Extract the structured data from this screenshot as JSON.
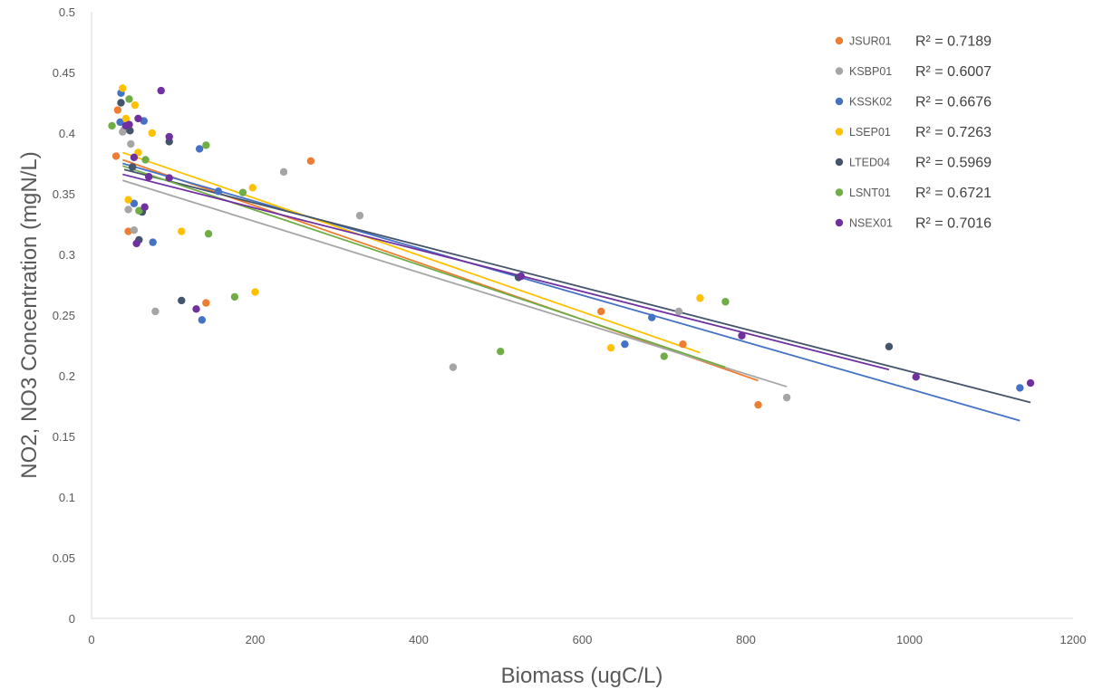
{
  "chart_data": {
    "type": "scatter",
    "xlabel": "Biomass (ugC/L)",
    "ylabel": "NO2, NO3 Concentration (mgN/L)",
    "xlim": [
      0,
      1200
    ],
    "ylim": [
      0,
      0.5
    ],
    "xticks": [
      "0",
      "200",
      "400",
      "600",
      "800",
      "1000",
      "1200"
    ],
    "yticks": [
      "0",
      "0.05",
      "0.1",
      "0.15",
      "0.2",
      "0.25",
      "0.3",
      "0.35",
      "0.4",
      "0.45",
      "0.5"
    ],
    "grid": false,
    "legend_position": "top-right",
    "series": [
      {
        "name": "JSUR01",
        "r2_label": "R² = 0.7189",
        "color": "#ED7D31",
        "points": [
          [
            30,
            0.381
          ],
          [
            32,
            0.419
          ],
          [
            45,
            0.319
          ],
          [
            140,
            0.26
          ],
          [
            268,
            0.377
          ],
          [
            623,
            0.253
          ],
          [
            723,
            0.226
          ],
          [
            815,
            0.176
          ]
        ],
        "trendline": [
          [
            38,
            0.378
          ],
          [
            815,
            0.196
          ]
        ]
      },
      {
        "name": "KSBP01",
        "r2_label": "R² = 0.6007",
        "color": "#A5A5A5",
        "points": [
          [
            38,
            0.401
          ],
          [
            40,
            0.403
          ],
          [
            45,
            0.337
          ],
          [
            48,
            0.391
          ],
          [
            52,
            0.32
          ],
          [
            78,
            0.253
          ],
          [
            235,
            0.368
          ],
          [
            328,
            0.332
          ],
          [
            442,
            0.207
          ],
          [
            718,
            0.253
          ],
          [
            850,
            0.182
          ]
        ],
        "trendline": [
          [
            38,
            0.361
          ],
          [
            850,
            0.191
          ]
        ]
      },
      {
        "name": "KSSK02",
        "r2_label": "R² = 0.6676",
        "color": "#4472C4",
        "points": [
          [
            35,
            0.409
          ],
          [
            36,
            0.433
          ],
          [
            52,
            0.342
          ],
          [
            64,
            0.41
          ],
          [
            75,
            0.31
          ],
          [
            132,
            0.387
          ],
          [
            135,
            0.246
          ],
          [
            155,
            0.352
          ],
          [
            652,
            0.226
          ],
          [
            685,
            0.248
          ],
          [
            1135,
            0.19
          ]
        ],
        "trendline": [
          [
            38,
            0.375
          ],
          [
            1135,
            0.163
          ]
        ]
      },
      {
        "name": "LSEP01",
        "r2_label": "R² = 0.7263",
        "color": "#FFC000",
        "points": [
          [
            38,
            0.437
          ],
          [
            42,
            0.412
          ],
          [
            45,
            0.345
          ],
          [
            53,
            0.423
          ],
          [
            57,
            0.384
          ],
          [
            74,
            0.4
          ],
          [
            110,
            0.319
          ],
          [
            197,
            0.355
          ],
          [
            200,
            0.269
          ],
          [
            635,
            0.223
          ],
          [
            744,
            0.264
          ]
        ],
        "trendline": [
          [
            38,
            0.384
          ],
          [
            744,
            0.219
          ]
        ]
      },
      {
        "name": "LTED04",
        "r2_label": "R² = 0.5969",
        "color": "#44546A",
        "points": [
          [
            36,
            0.425
          ],
          [
            47,
            0.402
          ],
          [
            50,
            0.372
          ],
          [
            58,
            0.312
          ],
          [
            62,
            0.335
          ],
          [
            95,
            0.393
          ],
          [
            110,
            0.262
          ],
          [
            522,
            0.281
          ],
          [
            975,
            0.224
          ]
        ],
        "trendline": [
          [
            40,
            0.37
          ],
          [
            1148,
            0.178
          ]
        ]
      },
      {
        "name": "LSNT01",
        "r2_label": "R² = 0.6721",
        "color": "#70AD47",
        "points": [
          [
            25,
            0.406
          ],
          [
            46,
            0.428
          ],
          [
            58,
            0.336
          ],
          [
            66,
            0.378
          ],
          [
            140,
            0.39
          ],
          [
            143,
            0.317
          ],
          [
            175,
            0.265
          ],
          [
            185,
            0.351
          ],
          [
            500,
            0.22
          ],
          [
            700,
            0.216
          ],
          [
            775,
            0.261
          ]
        ],
        "trendline": [
          [
            38,
            0.373
          ],
          [
            775,
            0.207
          ]
        ]
      },
      {
        "name": "NSEX01",
        "r2_label": "R² = 0.7016",
        "color": "#7030A0",
        "points": [
          [
            42,
            0.406
          ],
          [
            46,
            0.407
          ],
          [
            52,
            0.38
          ],
          [
            55,
            0.309
          ],
          [
            57,
            0.412
          ],
          [
            65,
            0.339
          ],
          [
            70,
            0.364
          ],
          [
            85,
            0.435
          ],
          [
            95,
            0.397
          ],
          [
            95,
            0.363
          ],
          [
            128,
            0.255
          ],
          [
            525,
            0.282
          ],
          [
            795,
            0.233
          ],
          [
            1008,
            0.199
          ],
          [
            1148,
            0.194
          ]
        ],
        "trendline": [
          [
            38,
            0.366
          ],
          [
            975,
            0.205
          ]
        ]
      }
    ]
  }
}
